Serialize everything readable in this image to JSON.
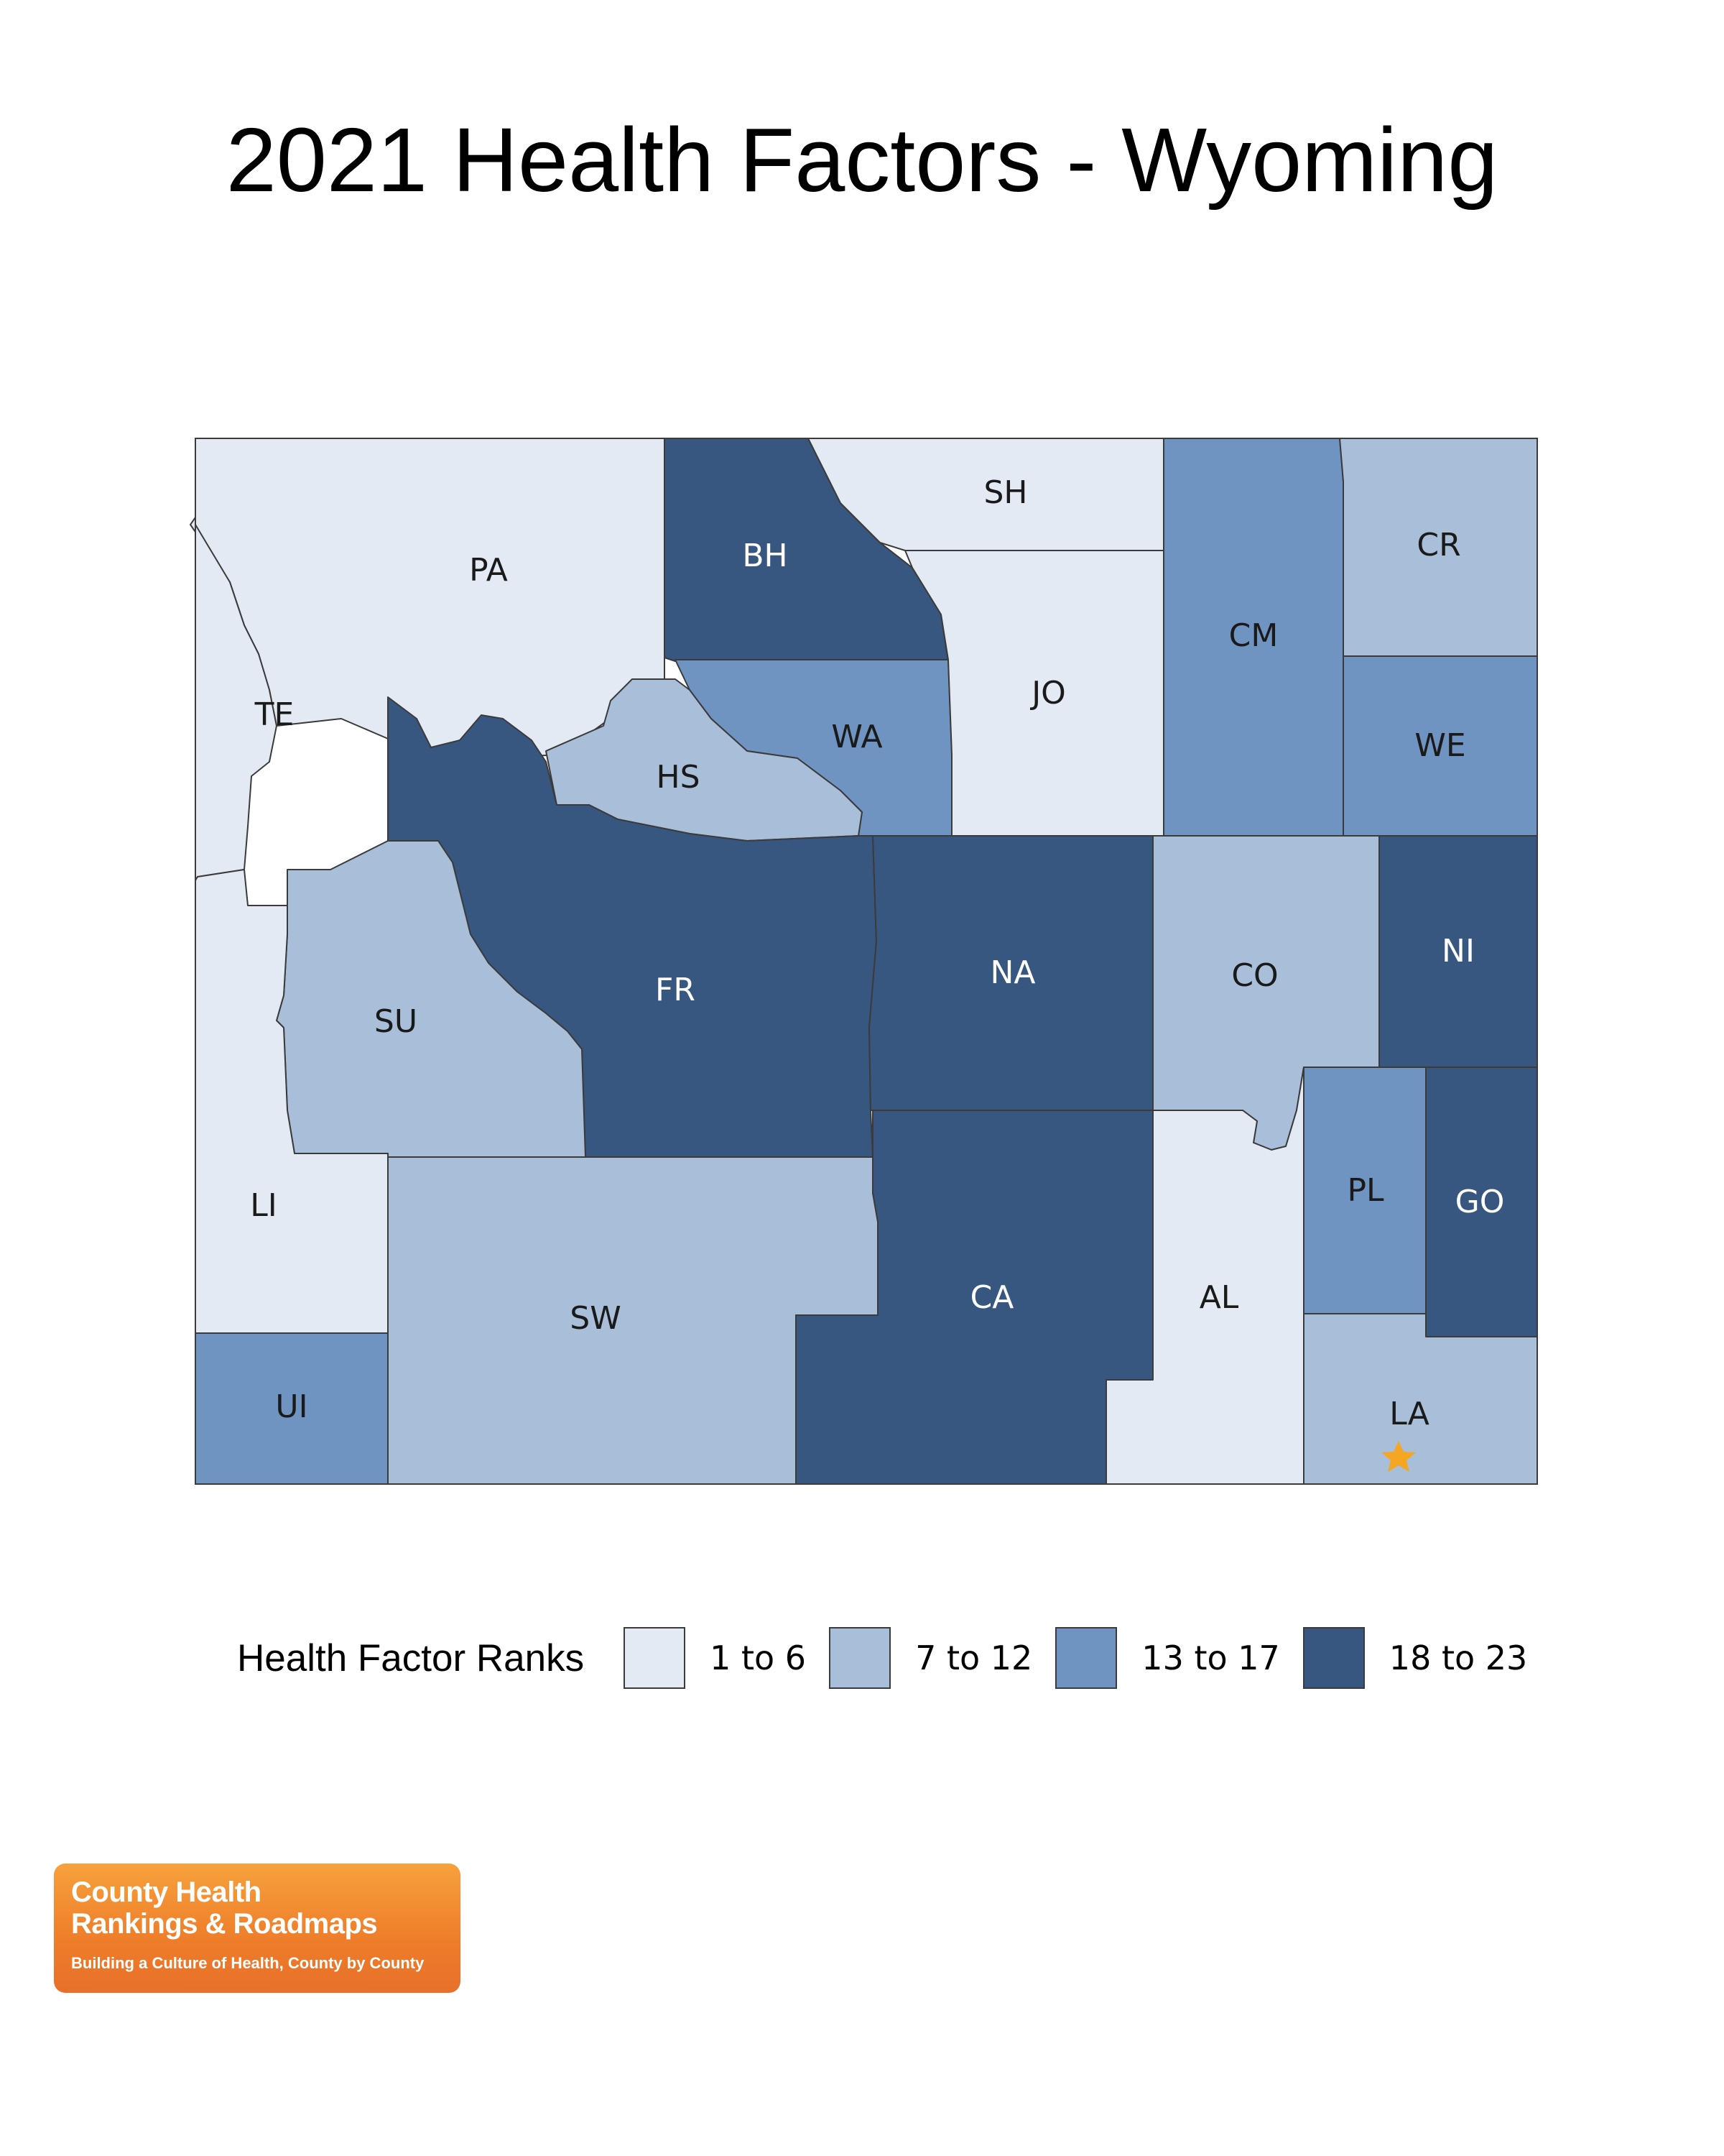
{
  "title": "2021 Health Factors - Wyoming",
  "legend": {
    "title": "Health Factor Ranks",
    "classes": [
      {
        "label": "1 to 6",
        "color": "#e3eaf3"
      },
      {
        "label": "7 to 12",
        "color": "#a8bed9"
      },
      {
        "label": "13 to 17",
        "color": "#6f94c2"
      },
      {
        "label": "18 to 23",
        "color": "#385780"
      }
    ]
  },
  "counties": [
    {
      "abbr": "PA",
      "rank_class": 0
    },
    {
      "abbr": "BH",
      "rank_class": 3
    },
    {
      "abbr": "SH",
      "rank_class": 0
    },
    {
      "abbr": "CM",
      "rank_class": 2
    },
    {
      "abbr": "CR",
      "rank_class": 1
    },
    {
      "abbr": "TE",
      "rank_class": 0
    },
    {
      "abbr": "WA",
      "rank_class": 2
    },
    {
      "abbr": "JO",
      "rank_class": 0
    },
    {
      "abbr": "WE",
      "rank_class": 2
    },
    {
      "abbr": "HS",
      "rank_class": 1
    },
    {
      "abbr": "FR",
      "rank_class": 3
    },
    {
      "abbr": "NA",
      "rank_class": 3
    },
    {
      "abbr": "CO",
      "rank_class": 1
    },
    {
      "abbr": "NI",
      "rank_class": 3
    },
    {
      "abbr": "SU",
      "rank_class": 1
    },
    {
      "abbr": "LI",
      "rank_class": 0
    },
    {
      "abbr": "SW",
      "rank_class": 1
    },
    {
      "abbr": "CA",
      "rank_class": 3
    },
    {
      "abbr": "AL",
      "rank_class": 0
    },
    {
      "abbr": "PL",
      "rank_class": 2
    },
    {
      "abbr": "GO",
      "rank_class": 3
    },
    {
      "abbr": "UI",
      "rank_class": 2
    },
    {
      "abbr": "LA",
      "rank_class": 1
    }
  ],
  "marker": {
    "county": "LA",
    "icon": "star-icon",
    "color": "#f5a623"
  },
  "logo": {
    "line1": "County Health",
    "line2": "Rankings & Roadmaps",
    "tagline": "Building a Culture of Health, County by County"
  }
}
